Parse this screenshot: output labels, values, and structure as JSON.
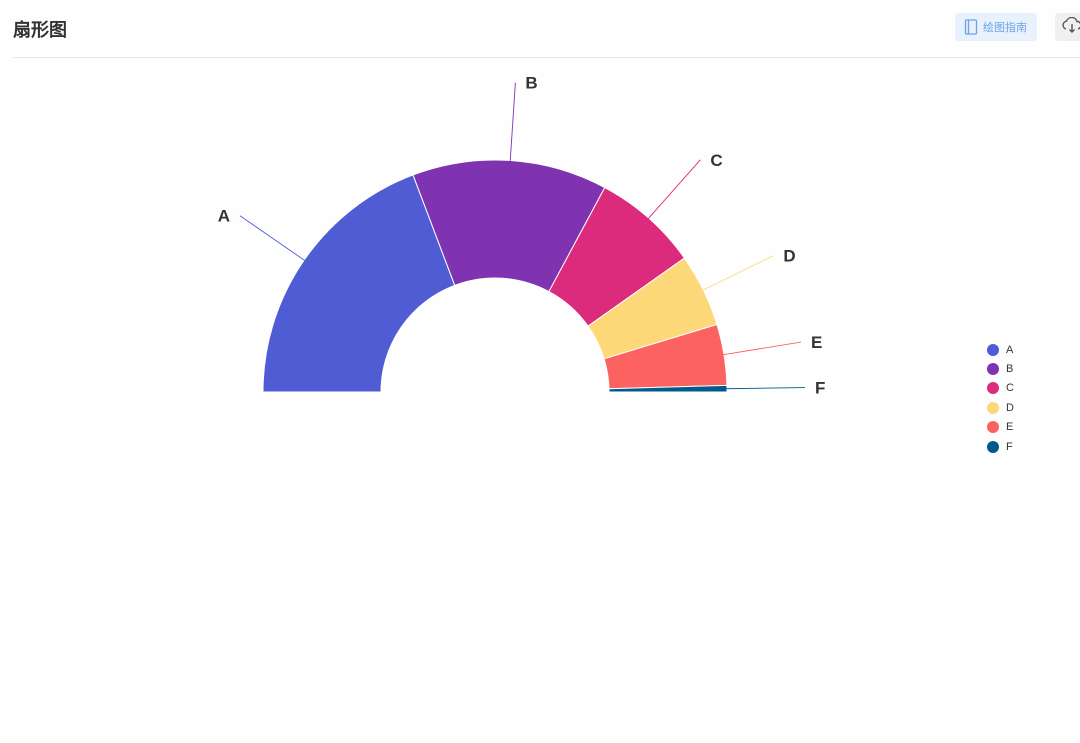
{
  "header": {
    "title": "扇形图",
    "guide_label": "绘图指南",
    "guide_icon": "book-icon",
    "download_icon": "cloud-download-icon"
  },
  "chart_data": {
    "type": "pie",
    "shape": "half-donut",
    "categories": [
      "A",
      "B",
      "C",
      "D",
      "E",
      "F"
    ],
    "values": [
      34.0,
      24.0,
      13.0,
      9.0,
      7.5,
      0.8
    ],
    "colors": [
      "#505cd4",
      "#7f33b0",
      "#dc2a7c",
      "#fdd879",
      "#fc625f",
      "#005a8b"
    ],
    "legend_position": "right",
    "title": ""
  }
}
